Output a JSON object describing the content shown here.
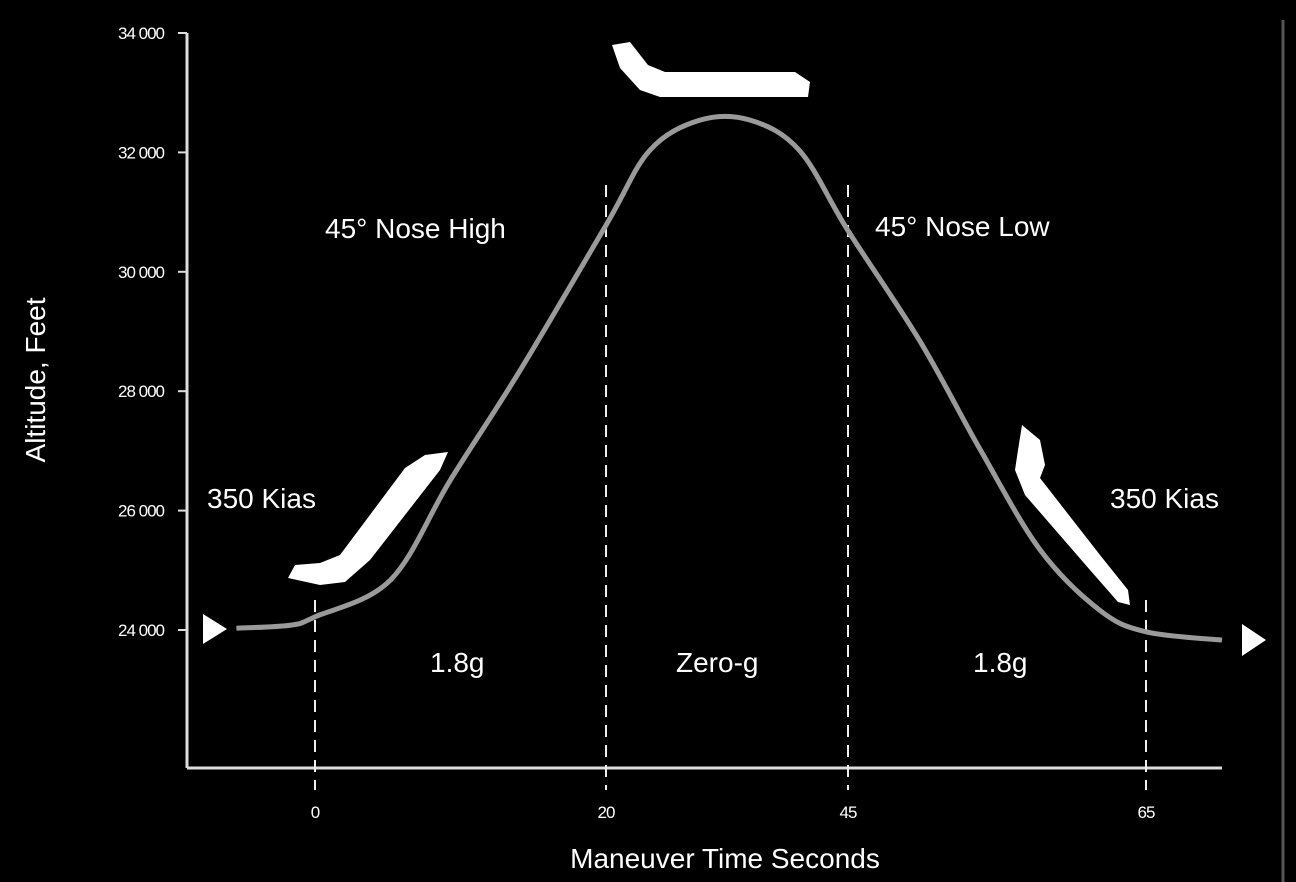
{
  "chart_data": {
    "type": "line",
    "title": "",
    "xlabel": "Maneuver Time Seconds",
    "ylabel": "Altitude, Feet",
    "x_ticks": [
      0,
      20,
      45,
      65
    ],
    "x_tick_labels": [
      "0",
      "20",
      "45",
      "65"
    ],
    "y_ticks": [
      24000,
      26000,
      28000,
      30000,
      32000,
      34000
    ],
    "y_tick_labels": [
      "24 000",
      "26 000",
      "28 000",
      "30 000",
      "32 000",
      "34 000"
    ],
    "ylim": [
      24000,
      34000
    ],
    "grid": false,
    "line_color": "#9a9a9a",
    "series": [
      {
        "x": [
          -5.4,
          -1.7,
          0,
          5.2,
          9.3,
          14.1,
          20,
          24.5,
          29.7,
          34.9,
          40.0,
          45,
          49.8,
          53.9,
          57.9,
          61.9,
          65,
          70.1
        ],
        "y": [
          24030,
          24080,
          24220,
          24840,
          26510,
          28350,
          30780,
          32030,
          32540,
          32540,
          32030,
          30690,
          28850,
          27010,
          25340,
          24330,
          23970,
          23830
        ]
      }
    ],
    "phase_markers": [
      0,
      20,
      45,
      65
    ],
    "annotations": {
      "nose_high": "45° Nose High",
      "nose_low": "45° Nose Low",
      "kias_left": "350 Kias",
      "kias_right": "350 Kias",
      "g_left": "1.8g",
      "g_zero": "Zero-g",
      "g_right": "1.8g"
    }
  }
}
